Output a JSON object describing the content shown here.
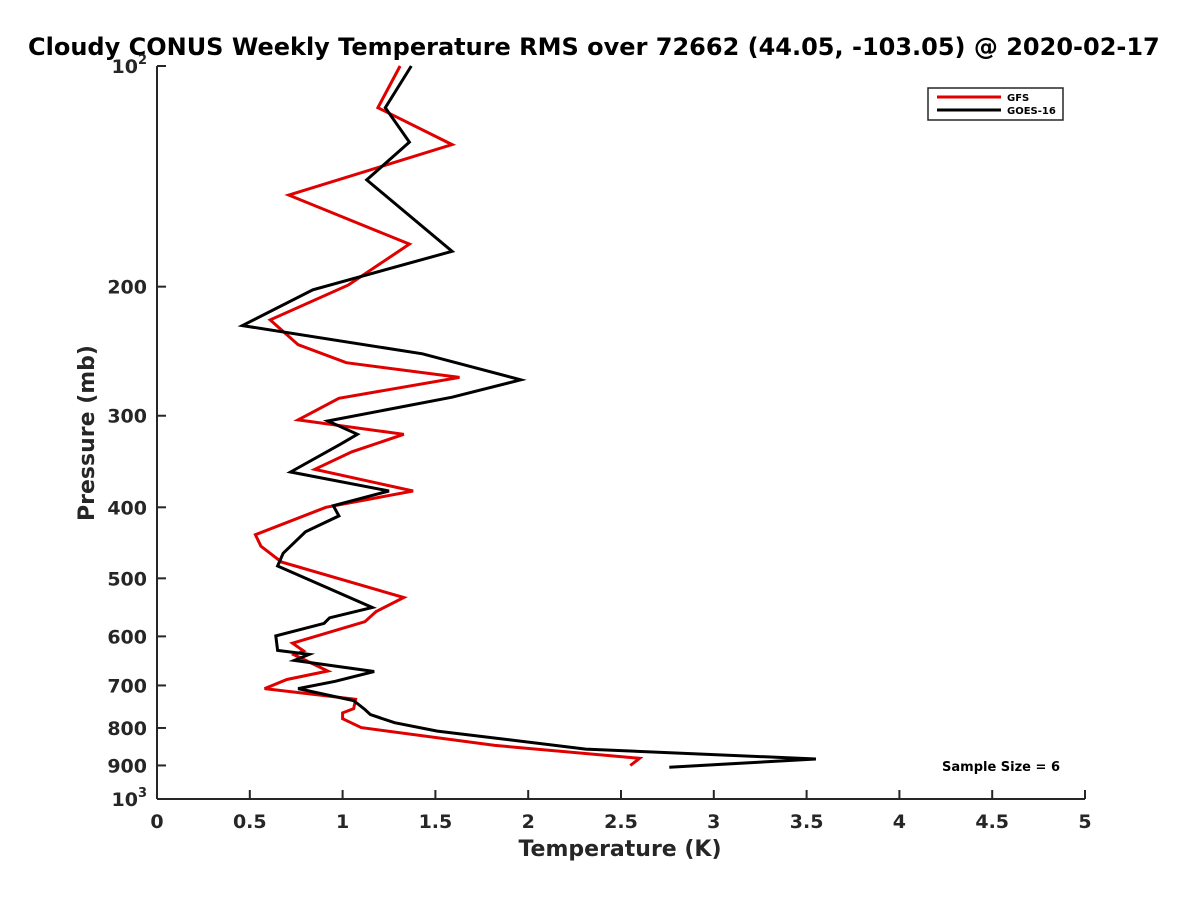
{
  "chart_data": {
    "type": "line",
    "title": "Cloudy CONUS Weekly Temperature RMS over 72662 (44.05, -103.05) @ 2020-02-17",
    "xlabel": "Temperature (K)",
    "ylabel": "Pressure (mb)",
    "xlim": [
      0,
      5
    ],
    "ylim": [
      100,
      1000
    ],
    "y_scale": "log",
    "y_reversed": true,
    "x_ticks": [
      "0",
      "0.5",
      "1",
      "1.5",
      "2",
      "2.5",
      "3",
      "3.5",
      "4",
      "4.5",
      "5"
    ],
    "y_ticks": [
      {
        "value": 100,
        "label": "10",
        "sup": "2"
      },
      {
        "value": 200,
        "label": "200",
        "sup": ""
      },
      {
        "value": 300,
        "label": "300",
        "sup": ""
      },
      {
        "value": 400,
        "label": "400",
        "sup": ""
      },
      {
        "value": 500,
        "label": "500",
        "sup": ""
      },
      {
        "value": 600,
        "label": "600",
        "sup": ""
      },
      {
        "value": 700,
        "label": "700",
        "sup": ""
      },
      {
        "value": 800,
        "label": "800",
        "sup": ""
      },
      {
        "value": 900,
        "label": "900",
        "sup": ""
      },
      {
        "value": 1000,
        "label": "10",
        "sup": "3"
      }
    ],
    "grid": false,
    "legend_position": "top-right",
    "annotation": "Sample Size = 6",
    "series": [
      {
        "name": "GFS",
        "color": "#e00000",
        "points": [
          [
            1.31,
            100
          ],
          [
            1.19,
            114
          ],
          [
            1.59,
            128
          ],
          [
            0.71,
            150
          ],
          [
            1.36,
            175
          ],
          [
            1.03,
            199
          ],
          [
            0.61,
            222
          ],
          [
            0.76,
            240
          ],
          [
            1.02,
            254
          ],
          [
            1.63,
            266
          ],
          [
            0.98,
            284
          ],
          [
            0.76,
            304
          ],
          [
            1.33,
            318
          ],
          [
            1.05,
            336
          ],
          [
            0.85,
            355
          ],
          [
            1.38,
            380
          ],
          [
            0.91,
            400
          ],
          [
            0.53,
            436
          ],
          [
            0.56,
            452
          ],
          [
            0.67,
            475
          ],
          [
            1.33,
            531
          ],
          [
            1.18,
            555
          ],
          [
            1.12,
            573
          ],
          [
            0.73,
            613
          ],
          [
            0.79,
            628
          ],
          [
            0.74,
            636
          ],
          [
            0.92,
            669
          ],
          [
            0.7,
            687
          ],
          [
            0.58,
            707
          ],
          [
            1.07,
            731
          ],
          [
            1.06,
            753
          ],
          [
            1.0,
            763
          ],
          [
            1.0,
            777
          ],
          [
            1.1,
            799
          ],
          [
            1.82,
            845
          ],
          [
            2.6,
            880
          ],
          [
            2.55,
            900
          ]
        ]
      },
      {
        "name": "GOES-16",
        "color": "#000000",
        "points": [
          [
            1.37,
            100
          ],
          [
            1.23,
            114
          ],
          [
            1.36,
            127
          ],
          [
            1.13,
            143
          ],
          [
            1.59,
            179
          ],
          [
            0.84,
            202
          ],
          [
            0.46,
            226
          ],
          [
            1.43,
            247
          ],
          [
            1.96,
            268
          ],
          [
            1.59,
            283
          ],
          [
            0.92,
            305
          ],
          [
            1.08,
            318
          ],
          [
            0.99,
            328
          ],
          [
            0.72,
            358
          ],
          [
            1.25,
            380
          ],
          [
            0.95,
            398
          ],
          [
            0.98,
            411
          ],
          [
            0.8,
            432
          ],
          [
            0.68,
            462
          ],
          [
            0.65,
            481
          ],
          [
            1.16,
            548
          ],
          [
            0.93,
            566
          ],
          [
            0.9,
            576
          ],
          [
            0.64,
            599
          ],
          [
            0.65,
            627
          ],
          [
            0.82,
            635
          ],
          [
            0.74,
            647
          ],
          [
            1.17,
            670
          ],
          [
            0.96,
            691
          ],
          [
            0.76,
            707
          ],
          [
            1.06,
            734
          ],
          [
            1.12,
            755
          ],
          [
            1.15,
            767
          ],
          [
            1.28,
            787
          ],
          [
            1.51,
            808
          ],
          [
            2.31,
            855
          ],
          [
            3.55,
            882
          ],
          [
            2.76,
            905
          ]
        ]
      }
    ]
  }
}
